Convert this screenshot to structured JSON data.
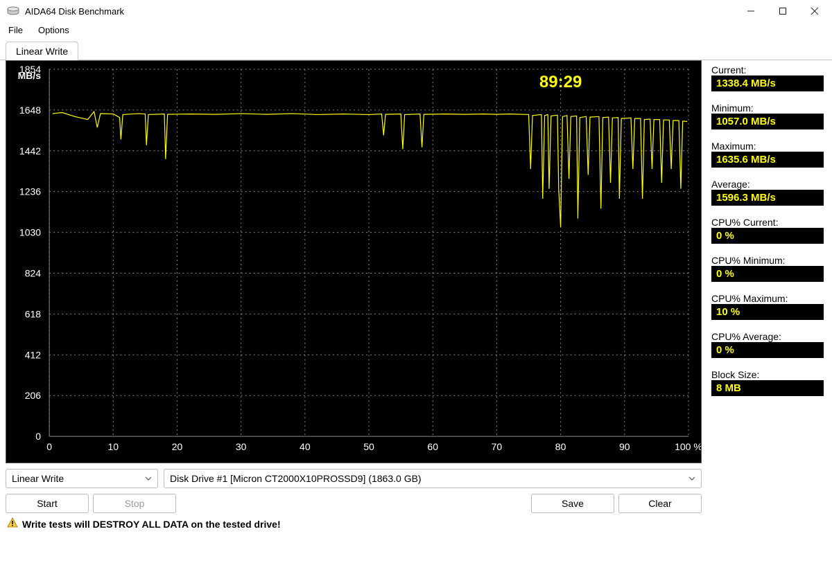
{
  "window": {
    "title": "AIDA64 Disk Benchmark"
  },
  "menu": {
    "file": "File",
    "options": "Options"
  },
  "tab": {
    "label": "Linear Write"
  },
  "chart": {
    "type": "line",
    "unit_label": "MB/s",
    "timer": "89:29",
    "timer_color": "#ffff00",
    "background_color": "#000000",
    "grid_color": "#888888",
    "line_color": "#ffff00",
    "text_color": "#ffffff",
    "ylim": [
      0,
      1854
    ],
    "yticks": [
      0,
      206,
      412,
      618,
      824,
      1030,
      1236,
      1442,
      1648,
      1854
    ],
    "xlim": [
      0,
      100
    ],
    "xticks": [
      0,
      10,
      20,
      30,
      40,
      50,
      60,
      70,
      80,
      90,
      100
    ],
    "x_suffix": " %",
    "series": [
      {
        "x": 0.5,
        "y": 1630
      },
      {
        "x": 2,
        "y": 1635
      },
      {
        "x": 4,
        "y": 1615
      },
      {
        "x": 6,
        "y": 1600
      },
      {
        "x": 7,
        "y": 1640
      },
      {
        "x": 7.5,
        "y": 1560
      },
      {
        "x": 8,
        "y": 1630
      },
      {
        "x": 10,
        "y": 1628
      },
      {
        "x": 11,
        "y": 1610
      },
      {
        "x": 11.2,
        "y": 1500
      },
      {
        "x": 11.5,
        "y": 1625
      },
      {
        "x": 14,
        "y": 1630
      },
      {
        "x": 15,
        "y": 1628
      },
      {
        "x": 15.2,
        "y": 1470
      },
      {
        "x": 15.5,
        "y": 1625
      },
      {
        "x": 18,
        "y": 1628
      },
      {
        "x": 18.2,
        "y": 1400
      },
      {
        "x": 18.5,
        "y": 1626
      },
      {
        "x": 22,
        "y": 1628
      },
      {
        "x": 26,
        "y": 1626
      },
      {
        "x": 30,
        "y": 1630
      },
      {
        "x": 34,
        "y": 1626
      },
      {
        "x": 38,
        "y": 1630
      },
      {
        "x": 42,
        "y": 1625
      },
      {
        "x": 46,
        "y": 1628
      },
      {
        "x": 50,
        "y": 1625
      },
      {
        "x": 52,
        "y": 1628
      },
      {
        "x": 52.3,
        "y": 1520
      },
      {
        "x": 52.6,
        "y": 1626
      },
      {
        "x": 55,
        "y": 1628
      },
      {
        "x": 55.3,
        "y": 1450
      },
      {
        "x": 55.6,
        "y": 1625
      },
      {
        "x": 58,
        "y": 1628
      },
      {
        "x": 58.3,
        "y": 1460
      },
      {
        "x": 58.6,
        "y": 1626
      },
      {
        "x": 62,
        "y": 1628
      },
      {
        "x": 65,
        "y": 1626
      },
      {
        "x": 68,
        "y": 1628
      },
      {
        "x": 70,
        "y": 1626
      },
      {
        "x": 72,
        "y": 1628
      },
      {
        "x": 75,
        "y": 1625
      },
      {
        "x": 75.3,
        "y": 1350
      },
      {
        "x": 75.6,
        "y": 1620
      },
      {
        "x": 77,
        "y": 1625
      },
      {
        "x": 77.2,
        "y": 1200
      },
      {
        "x": 77.5,
        "y": 1620
      },
      {
        "x": 78,
        "y": 1625
      },
      {
        "x": 78.2,
        "y": 1250
      },
      {
        "x": 78.5,
        "y": 1618
      },
      {
        "x": 79.5,
        "y": 1622
      },
      {
        "x": 79.7,
        "y": 1250
      },
      {
        "x": 80,
        "y": 1057
      },
      {
        "x": 80.3,
        "y": 1615
      },
      {
        "x": 81,
        "y": 1620
      },
      {
        "x": 81.3,
        "y": 1300
      },
      {
        "x": 81.6,
        "y": 1615
      },
      {
        "x": 82.5,
        "y": 1618
      },
      {
        "x": 82.7,
        "y": 1100
      },
      {
        "x": 83,
        "y": 1610
      },
      {
        "x": 84,
        "y": 1615
      },
      {
        "x": 84.3,
        "y": 1320
      },
      {
        "x": 84.6,
        "y": 1612
      },
      {
        "x": 86,
        "y": 1615
      },
      {
        "x": 86.3,
        "y": 1150
      },
      {
        "x": 86.6,
        "y": 1610
      },
      {
        "x": 87.5,
        "y": 1612
      },
      {
        "x": 87.8,
        "y": 1280
      },
      {
        "x": 88.1,
        "y": 1608
      },
      {
        "x": 89,
        "y": 1610
      },
      {
        "x": 89.2,
        "y": 1200
      },
      {
        "x": 89.5,
        "y": 1605
      },
      {
        "x": 91,
        "y": 1608
      },
      {
        "x": 91.3,
        "y": 1350
      },
      {
        "x": 91.6,
        "y": 1605
      },
      {
        "x": 92.5,
        "y": 1605
      },
      {
        "x": 92.8,
        "y": 1200
      },
      {
        "x": 93.1,
        "y": 1600
      },
      {
        "x": 94,
        "y": 1602
      },
      {
        "x": 94.3,
        "y": 1350
      },
      {
        "x": 94.6,
        "y": 1600
      },
      {
        "x": 95.5,
        "y": 1600
      },
      {
        "x": 95.8,
        "y": 1280
      },
      {
        "x": 96.1,
        "y": 1598
      },
      {
        "x": 97,
        "y": 1598
      },
      {
        "x": 97.3,
        "y": 1350
      },
      {
        "x": 97.6,
        "y": 1595
      },
      {
        "x": 98.5,
        "y": 1595
      },
      {
        "x": 98.8,
        "y": 1250
      },
      {
        "x": 99.1,
        "y": 1592
      },
      {
        "x": 99.8,
        "y": 1590
      }
    ]
  },
  "controls": {
    "test_dropdown": "Linear Write",
    "drive_dropdown": "Disk Drive #1  [Micron  CT2000X10PROSSD9]  (1863.0 GB)",
    "start": "Start",
    "stop": "Stop",
    "save": "Save",
    "clear": "Clear"
  },
  "warning": {
    "prefix": "Write tests will ",
    "bold": "DESTROY ALL DATA",
    "suffix": " on the tested drive!"
  },
  "stats": {
    "value_color": "#ffff00",
    "value_bg": "#000000",
    "items": [
      {
        "label": "Current:",
        "value": "1338.4 MB/s"
      },
      {
        "label": "Minimum:",
        "value": "1057.0 MB/s"
      },
      {
        "label": "Maximum:",
        "value": "1635.6 MB/s"
      },
      {
        "label": "Average:",
        "value": "1596.3 MB/s"
      },
      {
        "label": "CPU% Current:",
        "value": "0 %"
      },
      {
        "label": "CPU% Minimum:",
        "value": "0 %"
      },
      {
        "label": "CPU% Maximum:",
        "value": "10 %"
      },
      {
        "label": "CPU% Average:",
        "value": "0 %"
      },
      {
        "label": "Block Size:",
        "value": "8 MB"
      }
    ]
  }
}
